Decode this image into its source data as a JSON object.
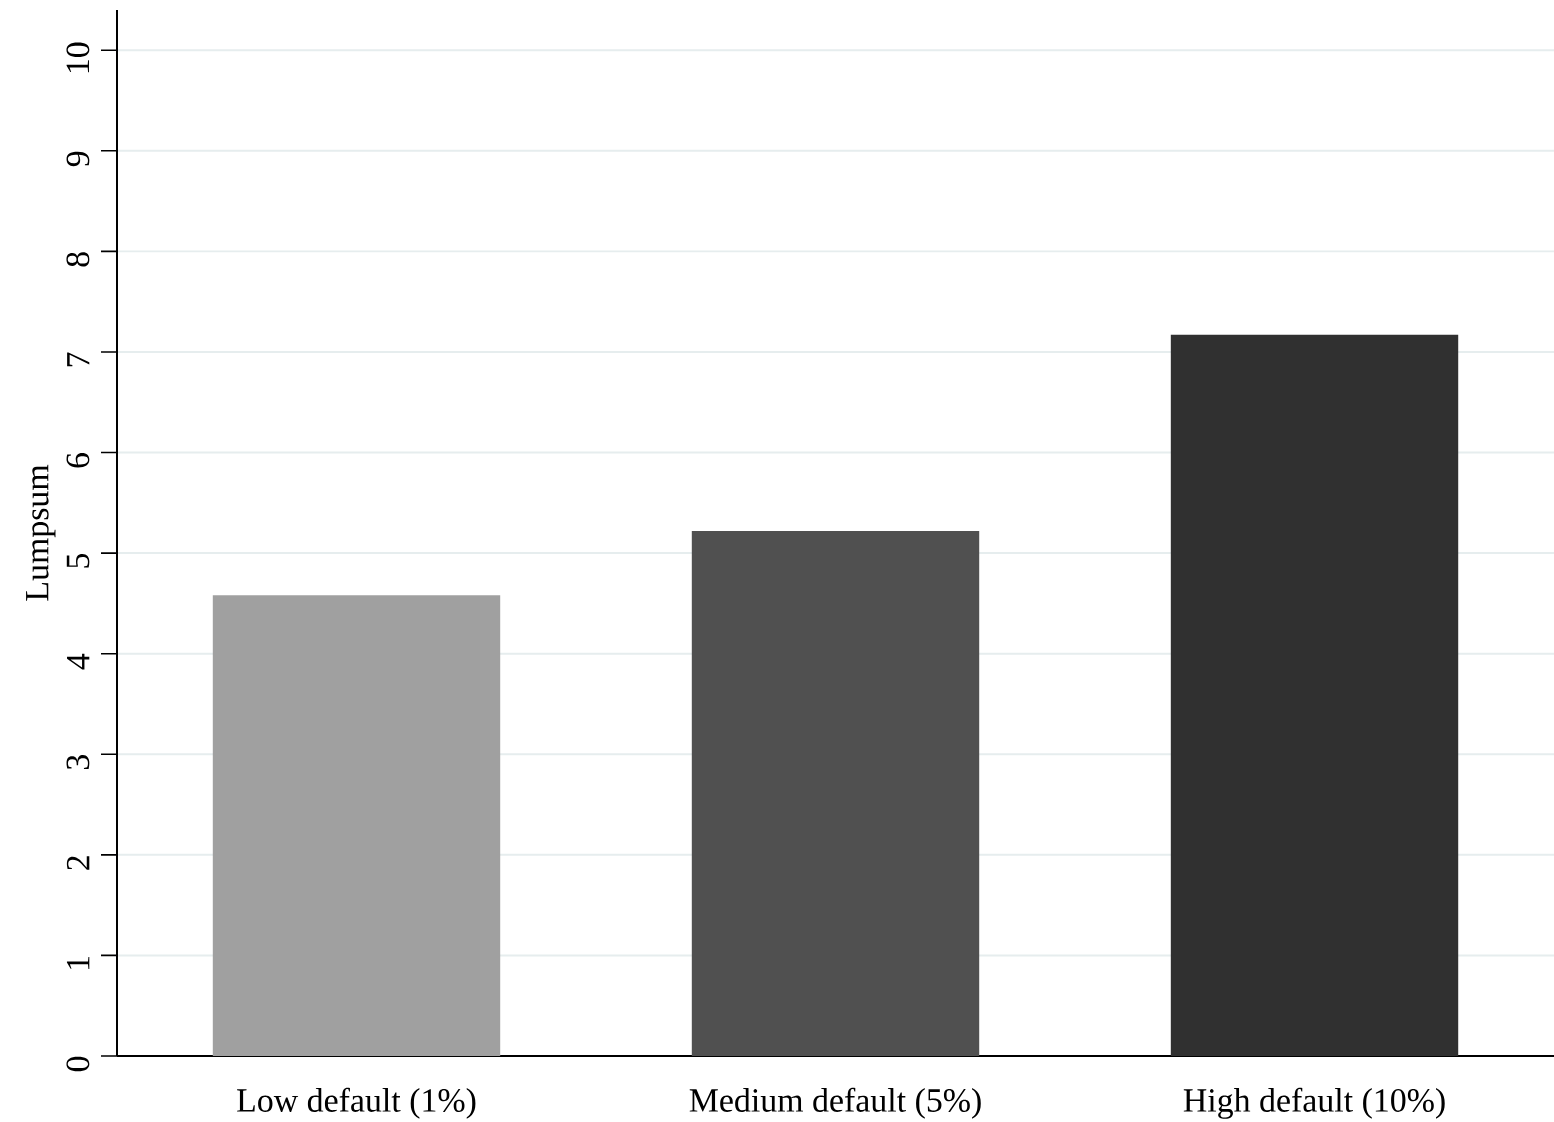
{
  "chart_data": {
    "type": "bar",
    "ylabel": "Lumpsum",
    "categories": [
      "Low default (1%)",
      "Medium default (5%)",
      "High default (10%)"
    ],
    "values": [
      4.58,
      5.22,
      7.17
    ],
    "colors": [
      "#a0a0a0",
      "#505050",
      "#303030"
    ],
    "ylim": [
      0,
      10.4
    ],
    "yticks": [
      0,
      1,
      2,
      3,
      4,
      5,
      6,
      7,
      8,
      9,
      10
    ],
    "grid": "y"
  }
}
